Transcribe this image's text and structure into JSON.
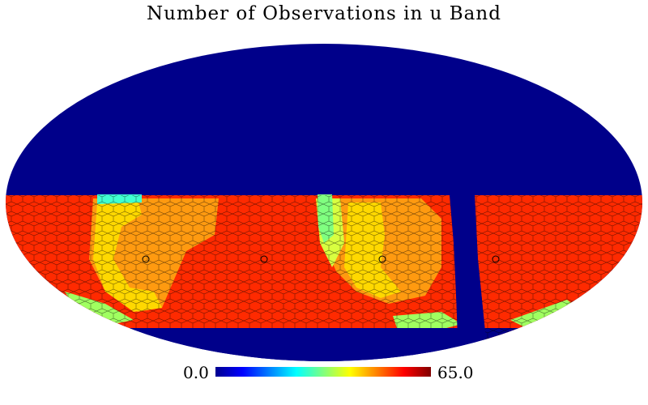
{
  "title": "Number of Observations in u Band",
  "colorbar": {
    "min_label": "0.0",
    "max_label": "65.0",
    "min": 0.0,
    "max": 65.0,
    "colormap": "jet",
    "stops": [
      "#00008f",
      "#0000ff",
      "#00ffff",
      "#ffff00",
      "#ff0000",
      "#800000"
    ]
  },
  "map": {
    "projection": "mollweide",
    "background_color": "#00008a",
    "observed_fill_color": "#ff2a00",
    "footprint_outline_color": "#000000",
    "regions": [
      {
        "name": "high-coverage-main",
        "value_color": "#ff2a00"
      },
      {
        "name": "moderate-coverage-left",
        "value_color": "#ff9a00"
      },
      {
        "name": "low-coverage-edges",
        "value_color": "#ffee00"
      },
      {
        "name": "minimal-coverage-spots",
        "value_color": "#30ffd0"
      }
    ]
  }
}
